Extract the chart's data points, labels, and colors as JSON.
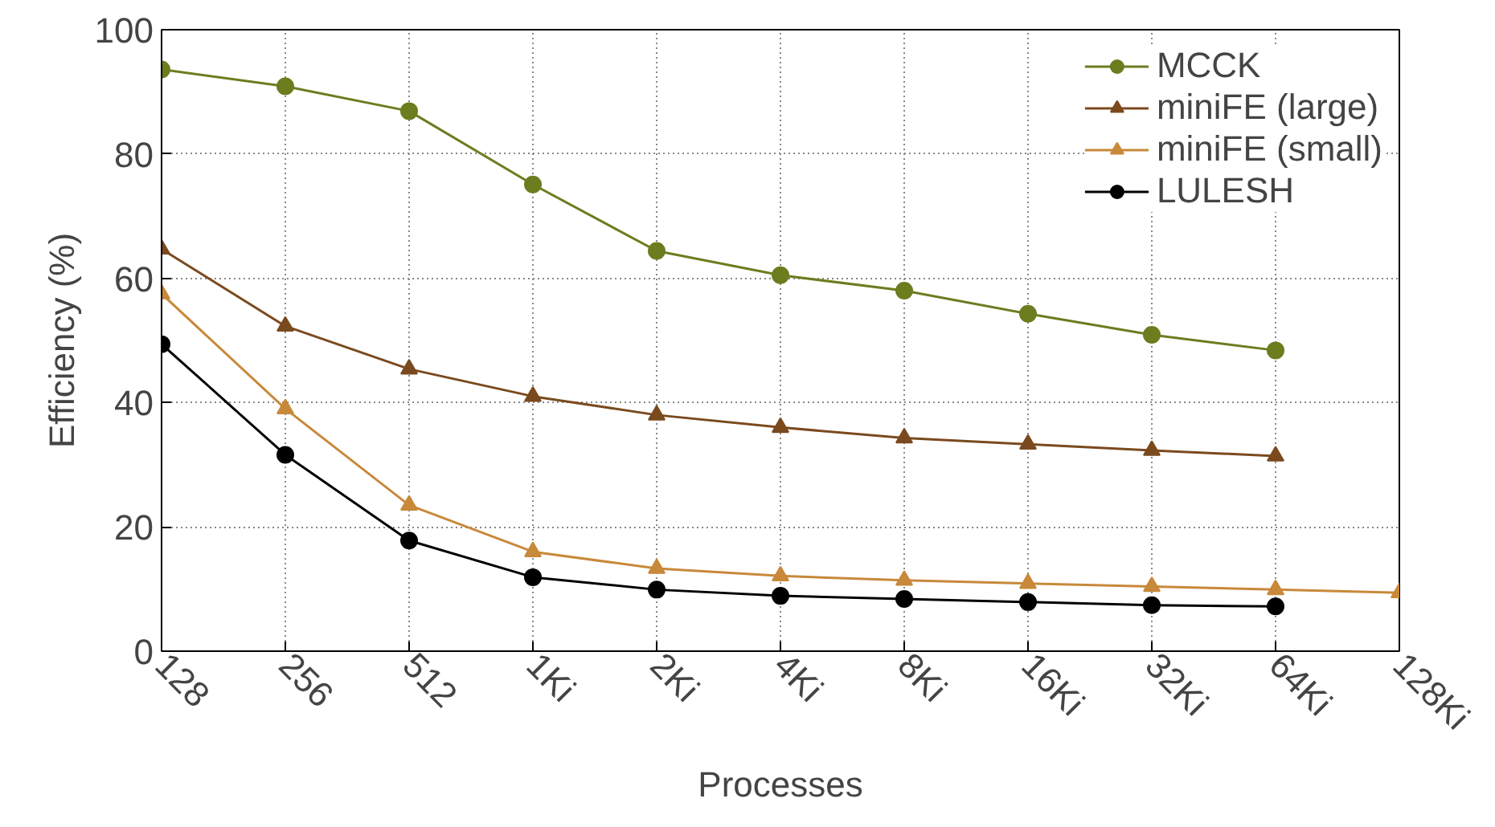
{
  "chart_data": {
    "type": "line",
    "xlabel": "Processes",
    "ylabel": "Efficiency (%)",
    "categories": [
      "128",
      "256",
      "512",
      "1Ki",
      "2Ki",
      "4Ki",
      "8Ki",
      "16Ki",
      "32Ki",
      "64Ki",
      "128Ki"
    ],
    "ylim": [
      0,
      100
    ],
    "yticks": [
      0,
      20,
      40,
      60,
      80,
      100
    ],
    "grid": true,
    "legend": "top right",
    "series": [
      {
        "name": "MCCK",
        "color": "#6b7d1f",
        "marker": "circle",
        "values": [
          93.6,
          90.9,
          86.9,
          75.1,
          64.4,
          60.5,
          58.0,
          54.3,
          50.9,
          48.4,
          null
        ]
      },
      {
        "name": "miniFE (large)",
        "color": "#7a4a1e",
        "marker": "triangle",
        "values": [
          64.7,
          52.3,
          45.4,
          41.0,
          38.0,
          36.0,
          34.3,
          33.3,
          32.3,
          31.4,
          null
        ]
      },
      {
        "name": "miniFE (small)",
        "color": "#c8893a",
        "marker": "triangle",
        "values": [
          57.5,
          39.0,
          23.5,
          16.0,
          13.3,
          12.1,
          11.4,
          10.9,
          10.4,
          9.9,
          9.4
        ]
      },
      {
        "name": "LULESH",
        "color": "#000000",
        "marker": "circle",
        "values": [
          49.4,
          31.6,
          17.8,
          11.9,
          9.9,
          8.9,
          8.4,
          7.9,
          7.4,
          7.2,
          null
        ]
      }
    ]
  }
}
